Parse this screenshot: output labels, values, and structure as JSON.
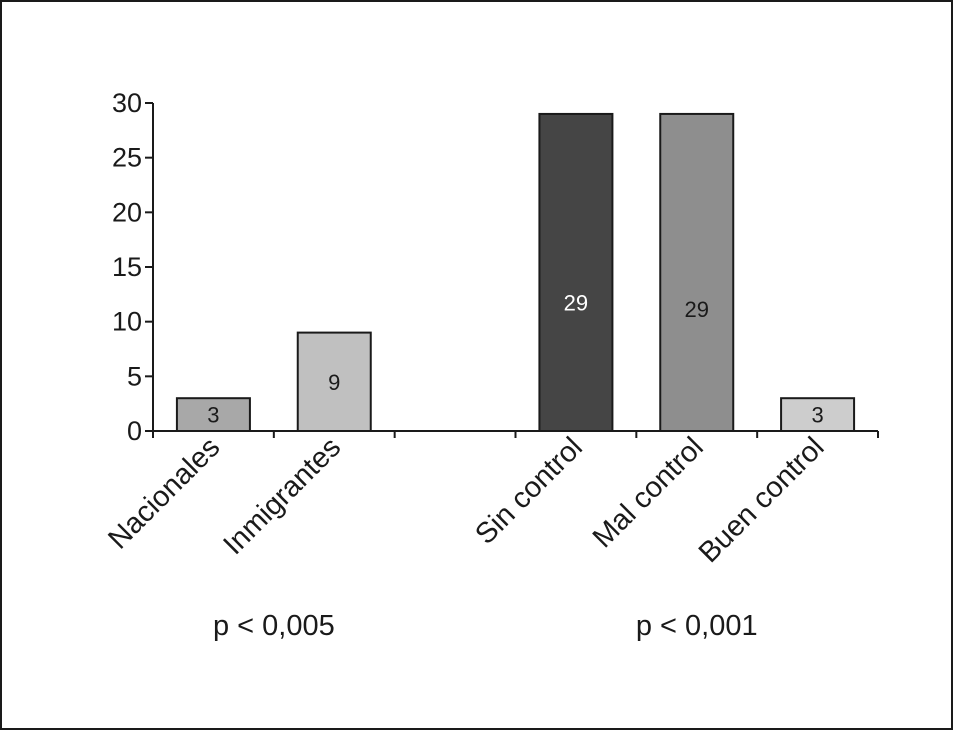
{
  "chart_data": {
    "type": "bar",
    "title": "",
    "xlabel": "",
    "ylabel": "",
    "ylim": [
      0,
      30
    ],
    "yticks": [
      0,
      5,
      10,
      15,
      20,
      25,
      30
    ],
    "grid": false,
    "legend": "none",
    "categories": [
      "Nacionales",
      "Inmigrantes",
      "",
      "Sin control",
      "Mal control",
      "Buen control"
    ],
    "bars": [
      {
        "category": "Nacionales",
        "value": 3,
        "label": "3",
        "fill": "#a8a8a8",
        "label_color": "#1a1a1a"
      },
      {
        "category": "Inmigrantes",
        "value": 9,
        "label": "9",
        "fill": "#c0c0c0",
        "label_color": "#1a1a1a"
      },
      {
        "category": "Sin control",
        "value": 29,
        "label": "29",
        "fill": "#454545",
        "label_color": "#ffffff"
      },
      {
        "category": "Mal control",
        "value": 29,
        "label": "29",
        "fill": "#8e8e8e",
        "label_color": "#1a1a1a"
      },
      {
        "category": "Buen control",
        "value": 3,
        "label": "3",
        "fill": "#cdcdcd",
        "label_color": "#1a1a1a"
      }
    ],
    "annotations": [
      {
        "text": "p < 0,005",
        "group": [
          "Nacionales",
          "Inmigrantes"
        ]
      },
      {
        "text": "p < 0,001",
        "group": [
          "Sin control",
          "Mal control",
          "Buen control"
        ]
      }
    ]
  }
}
